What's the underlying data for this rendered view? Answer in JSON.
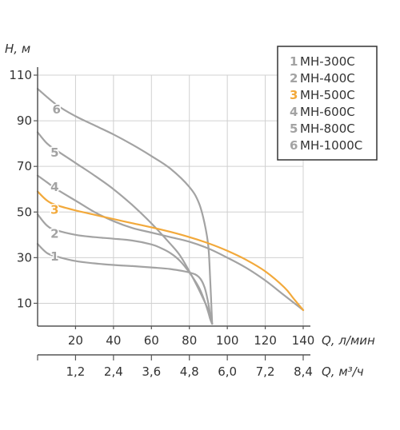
{
  "chart_data": {
    "type": "line",
    "ylabel": "H, м",
    "xlabel": "Q, л/мин",
    "x2label": "Q, м³/ч",
    "x_ticks": [
      "20",
      "40",
      "60",
      "80",
      "100",
      "120",
      "140"
    ],
    "x_tick_values": [
      20,
      40,
      60,
      80,
      100,
      120,
      140
    ],
    "x2_ticks": [
      "1,2",
      "2,4",
      "3,6",
      "4,8",
      "6,0",
      "7,2",
      "8,4"
    ],
    "y_ticks": [
      "10",
      "30",
      "50",
      "70",
      "90",
      "110"
    ],
    "y_tick_values": [
      10,
      30,
      50,
      70,
      90,
      110
    ],
    "xlim": [
      0,
      140
    ],
    "ylim": [
      0,
      110
    ],
    "grid": true,
    "legend_position": "top-right",
    "series": [
      {
        "num": "1",
        "name": "МН-300С",
        "color": "#a3a3a3",
        "x": [
          0,
          5,
          10,
          20,
          30,
          40,
          50,
          60,
          70,
          80,
          85,
          88,
          90,
          91,
          92
        ],
        "y": [
          36,
          32,
          30.5,
          28.5,
          27.5,
          26.8,
          26.3,
          25.7,
          25,
          23.5,
          21.5,
          17,
          10,
          5,
          1
        ]
      },
      {
        "num": "2",
        "name": "МН-400С",
        "color": "#a3a3a3",
        "x": [
          0,
          5,
          10,
          20,
          30,
          40,
          50,
          60,
          65,
          70,
          75,
          80,
          85,
          88,
          90,
          91,
          92
        ],
        "y": [
          49,
          44,
          42,
          40,
          39,
          38.3,
          37.5,
          35.8,
          34.2,
          32,
          28.6,
          23.5,
          17,
          11,
          6,
          3,
          1
        ]
      },
      {
        "num": "3",
        "name": "МН-500С",
        "color": "#f2a93b",
        "x": [
          0,
          5,
          10,
          20,
          30,
          40,
          50,
          60,
          70,
          80,
          90,
          100,
          110,
          120,
          130,
          135,
          140
        ],
        "y": [
          59,
          55,
          53,
          50.7,
          48.8,
          46.9,
          45.1,
          43.3,
          41.3,
          39,
          36.3,
          33,
          29,
          24,
          17,
          12,
          7
        ]
      },
      {
        "num": "4",
        "name": "МН-600С",
        "color": "#a3a3a3",
        "x": [
          0,
          5,
          10,
          20,
          30,
          40,
          50,
          60,
          70,
          80,
          90,
          100,
          110,
          120,
          130,
          140
        ],
        "y": [
          66,
          63,
          60,
          55,
          50,
          46,
          43,
          41,
          39,
          37,
          34,
          30,
          25.5,
          20,
          13.5,
          7
        ]
      },
      {
        "num": "5",
        "name": "МН-800С",
        "color": "#a3a3a3",
        "x": [
          0,
          5,
          10,
          20,
          30,
          40,
          50,
          60,
          70,
          75,
          80,
          85,
          90,
          92
        ],
        "y": [
          85,
          80,
          77,
          71.5,
          66,
          60,
          53,
          45,
          36,
          31,
          24,
          16,
          7,
          1
        ]
      },
      {
        "num": "6",
        "name": "МН-1000С",
        "color": "#a3a3a3",
        "x": [
          0,
          10,
          20,
          30,
          40,
          50,
          60,
          70,
          80,
          85,
          88,
          90,
          91,
          92
        ],
        "y": [
          104,
          97,
          92,
          88,
          84,
          79.5,
          74.5,
          69,
          61,
          54,
          45,
          35,
          20,
          1
        ]
      }
    ],
    "curve_labels": [
      {
        "num": "1",
        "color": "#a3a3a3"
      },
      {
        "num": "2",
        "color": "#a3a3a3"
      },
      {
        "num": "3",
        "color": "#f2a93b"
      },
      {
        "num": "4",
        "color": "#a3a3a3"
      },
      {
        "num": "5",
        "color": "#a3a3a3"
      },
      {
        "num": "6",
        "color": "#a3a3a3"
      }
    ],
    "colors": {
      "axis": "#555555",
      "grid": "#d0d0d0",
      "highlight": "#f2a93b",
      "curve": "#a3a3a3"
    }
  }
}
